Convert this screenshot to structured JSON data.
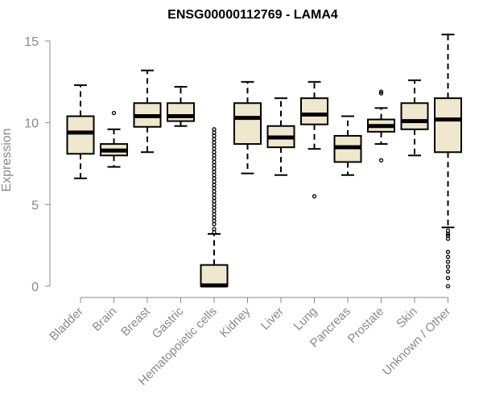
{
  "chart_data": {
    "type": "boxplot",
    "title": "ENSG00000112769 - LAMA4",
    "xlabel": "",
    "ylabel": "Expression",
    "ylim": [
      0,
      15
    ],
    "yticks": [
      0,
      5,
      10,
      15
    ],
    "colors": {
      "box_fill": "#efe7ce",
      "box_stroke": "#000000",
      "axis": "#8a8a8a"
    },
    "categories": [
      "Bladder",
      "Brain",
      "Breast",
      "Gastric",
      "Hematopoietic cells",
      "Kidney",
      "Liver",
      "Lung",
      "Pancreas",
      "Prostate",
      "Skin",
      "Unknown / Other"
    ],
    "boxes": [
      {
        "name": "Bladder",
        "whisker_low": 6.6,
        "q1": 8.1,
        "median": 9.4,
        "q3": 10.4,
        "whisker_high": 12.3,
        "outliers": []
      },
      {
        "name": "Brain",
        "whisker_low": 7.3,
        "q1": 8.0,
        "median": 8.3,
        "q3": 8.7,
        "whisker_high": 9.6,
        "outliers": [
          10.6
        ]
      },
      {
        "name": "Breast",
        "whisker_low": 8.2,
        "q1": 9.75,
        "median": 10.4,
        "q3": 11.2,
        "whisker_high": 13.2,
        "outliers": []
      },
      {
        "name": "Gastric",
        "whisker_low": 9.8,
        "q1": 10.1,
        "median": 10.4,
        "q3": 11.2,
        "whisker_high": 12.2,
        "outliers": []
      },
      {
        "name": "Hematopoietic cells",
        "whisker_low": 0.0,
        "q1": 0.0,
        "median": 0.05,
        "q3": 1.3,
        "whisker_high": 3.2,
        "outliers": [
          3.3,
          3.5,
          3.8,
          4.0,
          4.2,
          4.4,
          4.6,
          4.8,
          5.0,
          5.2,
          5.4,
          5.6,
          5.8,
          6.0,
          6.2,
          6.4,
          6.6,
          6.8,
          7.0,
          7.2,
          7.4,
          7.6,
          7.8,
          8.0,
          8.2,
          8.4,
          8.6,
          8.8,
          9.0,
          9.2,
          9.4,
          9.6
        ]
      },
      {
        "name": "Kidney",
        "whisker_low": 6.9,
        "q1": 8.7,
        "median": 10.3,
        "q3": 11.2,
        "whisker_high": 12.5,
        "outliers": []
      },
      {
        "name": "Liver",
        "whisker_low": 6.8,
        "q1": 8.5,
        "median": 9.1,
        "q3": 9.8,
        "whisker_high": 11.5,
        "outliers": []
      },
      {
        "name": "Lung",
        "whisker_low": 8.4,
        "q1": 9.9,
        "median": 10.5,
        "q3": 11.5,
        "whisker_high": 12.5,
        "outliers": [
          5.5
        ]
      },
      {
        "name": "Pancreas",
        "whisker_low": 6.8,
        "q1": 7.6,
        "median": 8.5,
        "q3": 9.2,
        "whisker_high": 10.4,
        "outliers": []
      },
      {
        "name": "Prostate",
        "whisker_low": 8.7,
        "q1": 9.45,
        "median": 9.8,
        "q3": 10.2,
        "whisker_high": 10.9,
        "outliers": [
          11.8,
          11.9,
          7.7
        ]
      },
      {
        "name": "Skin",
        "whisker_low": 8.0,
        "q1": 9.6,
        "median": 10.1,
        "q3": 11.2,
        "whisker_high": 12.6,
        "outliers": []
      },
      {
        "name": "Unknown / Other",
        "whisker_low": 3.6,
        "q1": 8.2,
        "median": 10.2,
        "q3": 11.5,
        "whisker_high": 15.4,
        "outliers": [
          0.0,
          0.5,
          0.9,
          1.2,
          1.5,
          1.8,
          2.1,
          2.9,
          3.1,
          3.2,
          3.4
        ]
      }
    ]
  }
}
